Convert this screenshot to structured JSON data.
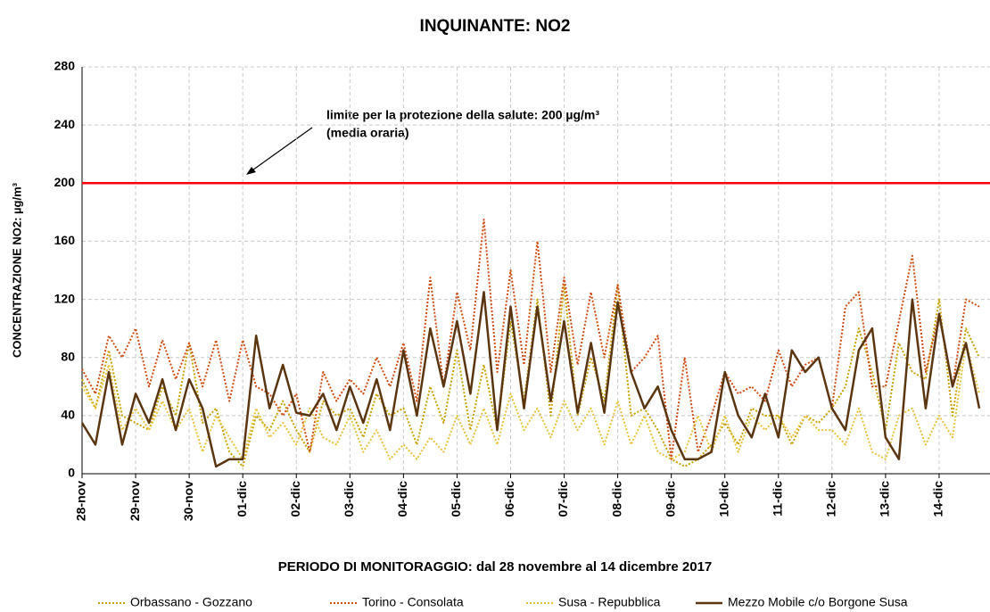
{
  "chart_data": {
    "type": "line",
    "title": "INQUINANTE: NO2",
    "y_label": "CONCENTRAZIONE NO2:  µg/m³",
    "x_label": "PERIODO DI MONITORAGGIO: dal 28 novembre al 14 dicembre 2017",
    "annotation": [
      "limite per la protezione della salute: 200  µg/m³",
      "(media oraria)"
    ],
    "limit": {
      "value": 200,
      "color": "#ff0000"
    },
    "ylim": [
      0,
      280
    ],
    "yticks": [
      0,
      40,
      80,
      120,
      160,
      200,
      240,
      280
    ],
    "grid": true,
    "legend": "bottom",
    "categories": [
      "28-nov",
      null,
      null,
      null,
      "29-nov",
      null,
      null,
      null,
      "30-nov",
      null,
      null,
      null,
      "01-dic",
      null,
      null,
      null,
      "02-dic",
      null,
      null,
      null,
      "03-dic",
      null,
      null,
      null,
      "04-dic",
      null,
      null,
      null,
      "05-dic",
      null,
      null,
      null,
      "06-dic",
      null,
      null,
      null,
      "07-dic",
      null,
      null,
      null,
      "08-dic",
      null,
      null,
      null,
      "09-dic",
      null,
      null,
      null,
      "10-dic",
      null,
      null,
      null,
      "11-dic",
      null,
      null,
      null,
      "12-dic",
      null,
      null,
      null,
      "13-dic",
      null,
      null,
      null,
      "14-dic",
      null,
      null,
      null
    ],
    "series": [
      {
        "name": "Orbassano - Gozzano",
        "color": "#c8a000",
        "style": "dotted",
        "values": [
          65,
          45,
          85,
          40,
          35,
          30,
          60,
          40,
          90,
          35,
          45,
          15,
          5,
          40,
          30,
          50,
          30,
          15,
          50,
          40,
          45,
          25,
          55,
          40,
          45,
          20,
          60,
          35,
          85,
          30,
          75,
          30,
          105,
          50,
          120,
          40,
          130,
          40,
          80,
          50,
          130,
          40,
          45,
          30,
          10,
          5,
          10,
          20,
          35,
          20,
          45,
          40,
          40,
          20,
          40,
          35,
          45,
          60,
          100,
          70,
          30,
          90,
          70,
          65,
          120,
          40,
          100,
          80
        ]
      },
      {
        "name": "Torino - Consolata",
        "color": "#d04a10",
        "style": "dotted",
        "values": [
          72,
          55,
          95,
          80,
          100,
          60,
          92,
          65,
          90,
          60,
          92,
          50,
          92,
          60,
          55,
          40,
          55,
          15,
          70,
          50,
          65,
          55,
          80,
          60,
          90,
          50,
          135,
          60,
          125,
          85,
          175,
          70,
          140,
          75,
          160,
          70,
          135,
          75,
          125,
          80,
          130,
          70,
          80,
          95,
          10,
          80,
          15,
          40,
          70,
          55,
          60,
          50,
          85,
          60,
          75,
          80,
          45,
          115,
          125,
          60,
          60,
          105,
          150,
          70,
          110,
          60,
          120,
          115
        ]
      },
      {
        "name": "Susa - Repubblica",
        "color": "#e8c23a",
        "style": "dotted",
        "values": [
          60,
          45,
          75,
          30,
          45,
          30,
          50,
          30,
          45,
          15,
          40,
          25,
          10,
          45,
          25,
          35,
          20,
          45,
          25,
          20,
          40,
          15,
          30,
          10,
          20,
          10,
          25,
          15,
          40,
          20,
          45,
          20,
          55,
          30,
          45,
          25,
          50,
          30,
          45,
          20,
          50,
          20,
          40,
          15,
          10,
          15,
          40,
          15,
          40,
          15,
          40,
          30,
          40,
          25,
          40,
          30,
          30,
          20,
          45,
          15,
          10,
          40,
          45,
          20,
          40,
          25,
          90,
          55
        ]
      },
      {
        "name": "Mezzo Mobile c/o Borgone Susa",
        "color": "#5a3510",
        "style": "solid",
        "values": [
          35,
          20,
          70,
          20,
          55,
          35,
          65,
          30,
          65,
          45,
          5,
          10,
          10,
          95,
          45,
          75,
          42,
          40,
          55,
          30,
          60,
          35,
          65,
          30,
          85,
          40,
          100,
          60,
          105,
          55,
          125,
          30,
          115,
          45,
          115,
          50,
          105,
          42,
          90,
          42,
          118,
          70,
          45,
          60,
          30,
          10,
          10,
          15,
          70,
          40,
          25,
          55,
          25,
          85,
          70,
          80,
          45,
          30,
          85,
          100,
          25,
          10,
          120,
          45,
          110,
          60,
          90,
          45
        ]
      }
    ]
  }
}
